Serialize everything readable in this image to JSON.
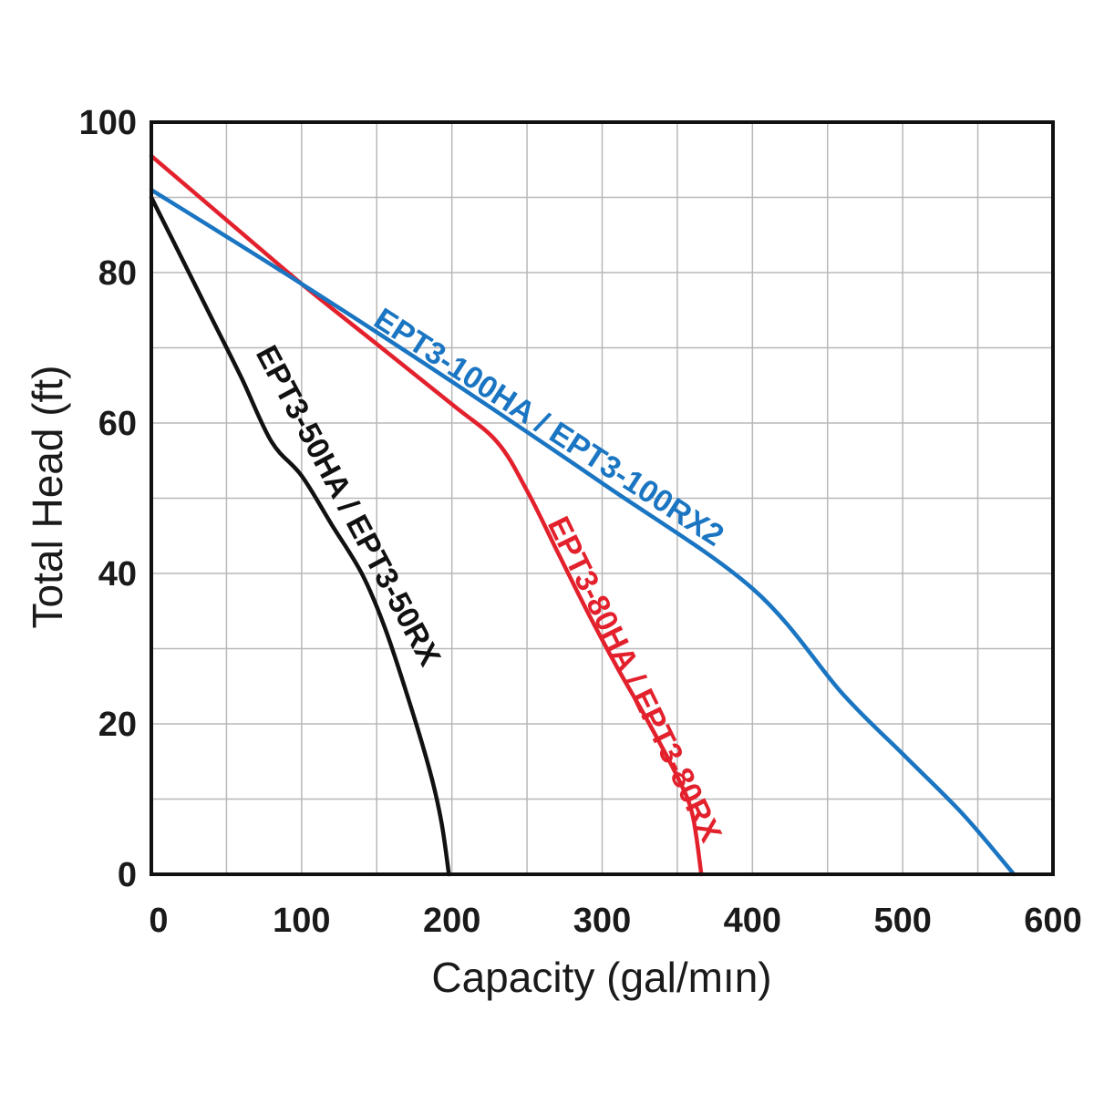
{
  "chart_data": {
    "type": "line",
    "title": "",
    "xlabel": "Capacity (gal/mın)",
    "ylabel": "Total Head (ft)",
    "xlim": [
      0,
      600
    ],
    "ylim": [
      0,
      100
    ],
    "x_ticks": [
      "0",
      "100",
      "200",
      "300",
      "400",
      "500",
      "600"
    ],
    "y_ticks": [
      "0",
      "20",
      "40",
      "60",
      "80",
      "100"
    ],
    "grid": true,
    "series": [
      {
        "name": "EPT3-50HA / EPT3-50RX",
        "color": "#111111",
        "points": [
          [
            0,
            90
          ],
          [
            20,
            82
          ],
          [
            40,
            74
          ],
          [
            60,
            66
          ],
          [
            80,
            57.5
          ],
          [
            100,
            53
          ],
          [
            120,
            46.5
          ],
          [
            140,
            40
          ],
          [
            155,
            33
          ],
          [
            170,
            24
          ],
          [
            185,
            14
          ],
          [
            193,
            7
          ],
          [
            198,
            0
          ]
        ]
      },
      {
        "name": "EPT3-80HA / EPT3-80RX",
        "color": "#e3212d",
        "points": [
          [
            0,
            95.5
          ],
          [
            50,
            87
          ],
          [
            100,
            78.5
          ],
          [
            150,
            70.5
          ],
          [
            200,
            62.5
          ],
          [
            230,
            57.5
          ],
          [
            250,
            51
          ],
          [
            270,
            43
          ],
          [
            290,
            35
          ],
          [
            310,
            27.5
          ],
          [
            330,
            20.5
          ],
          [
            350,
            13
          ],
          [
            360,
            8
          ],
          [
            366,
            0
          ]
        ]
      },
      {
        "name": "EPT3-100HA / EPT3-100RX2",
        "color": "#1a75c2",
        "points": [
          [
            0,
            91
          ],
          [
            100,
            78.5
          ],
          [
            200,
            65.5
          ],
          [
            300,
            52
          ],
          [
            400,
            38
          ],
          [
            460,
            24
          ],
          [
            500,
            16
          ],
          [
            540,
            8
          ],
          [
            574,
            0
          ]
        ]
      }
    ]
  }
}
